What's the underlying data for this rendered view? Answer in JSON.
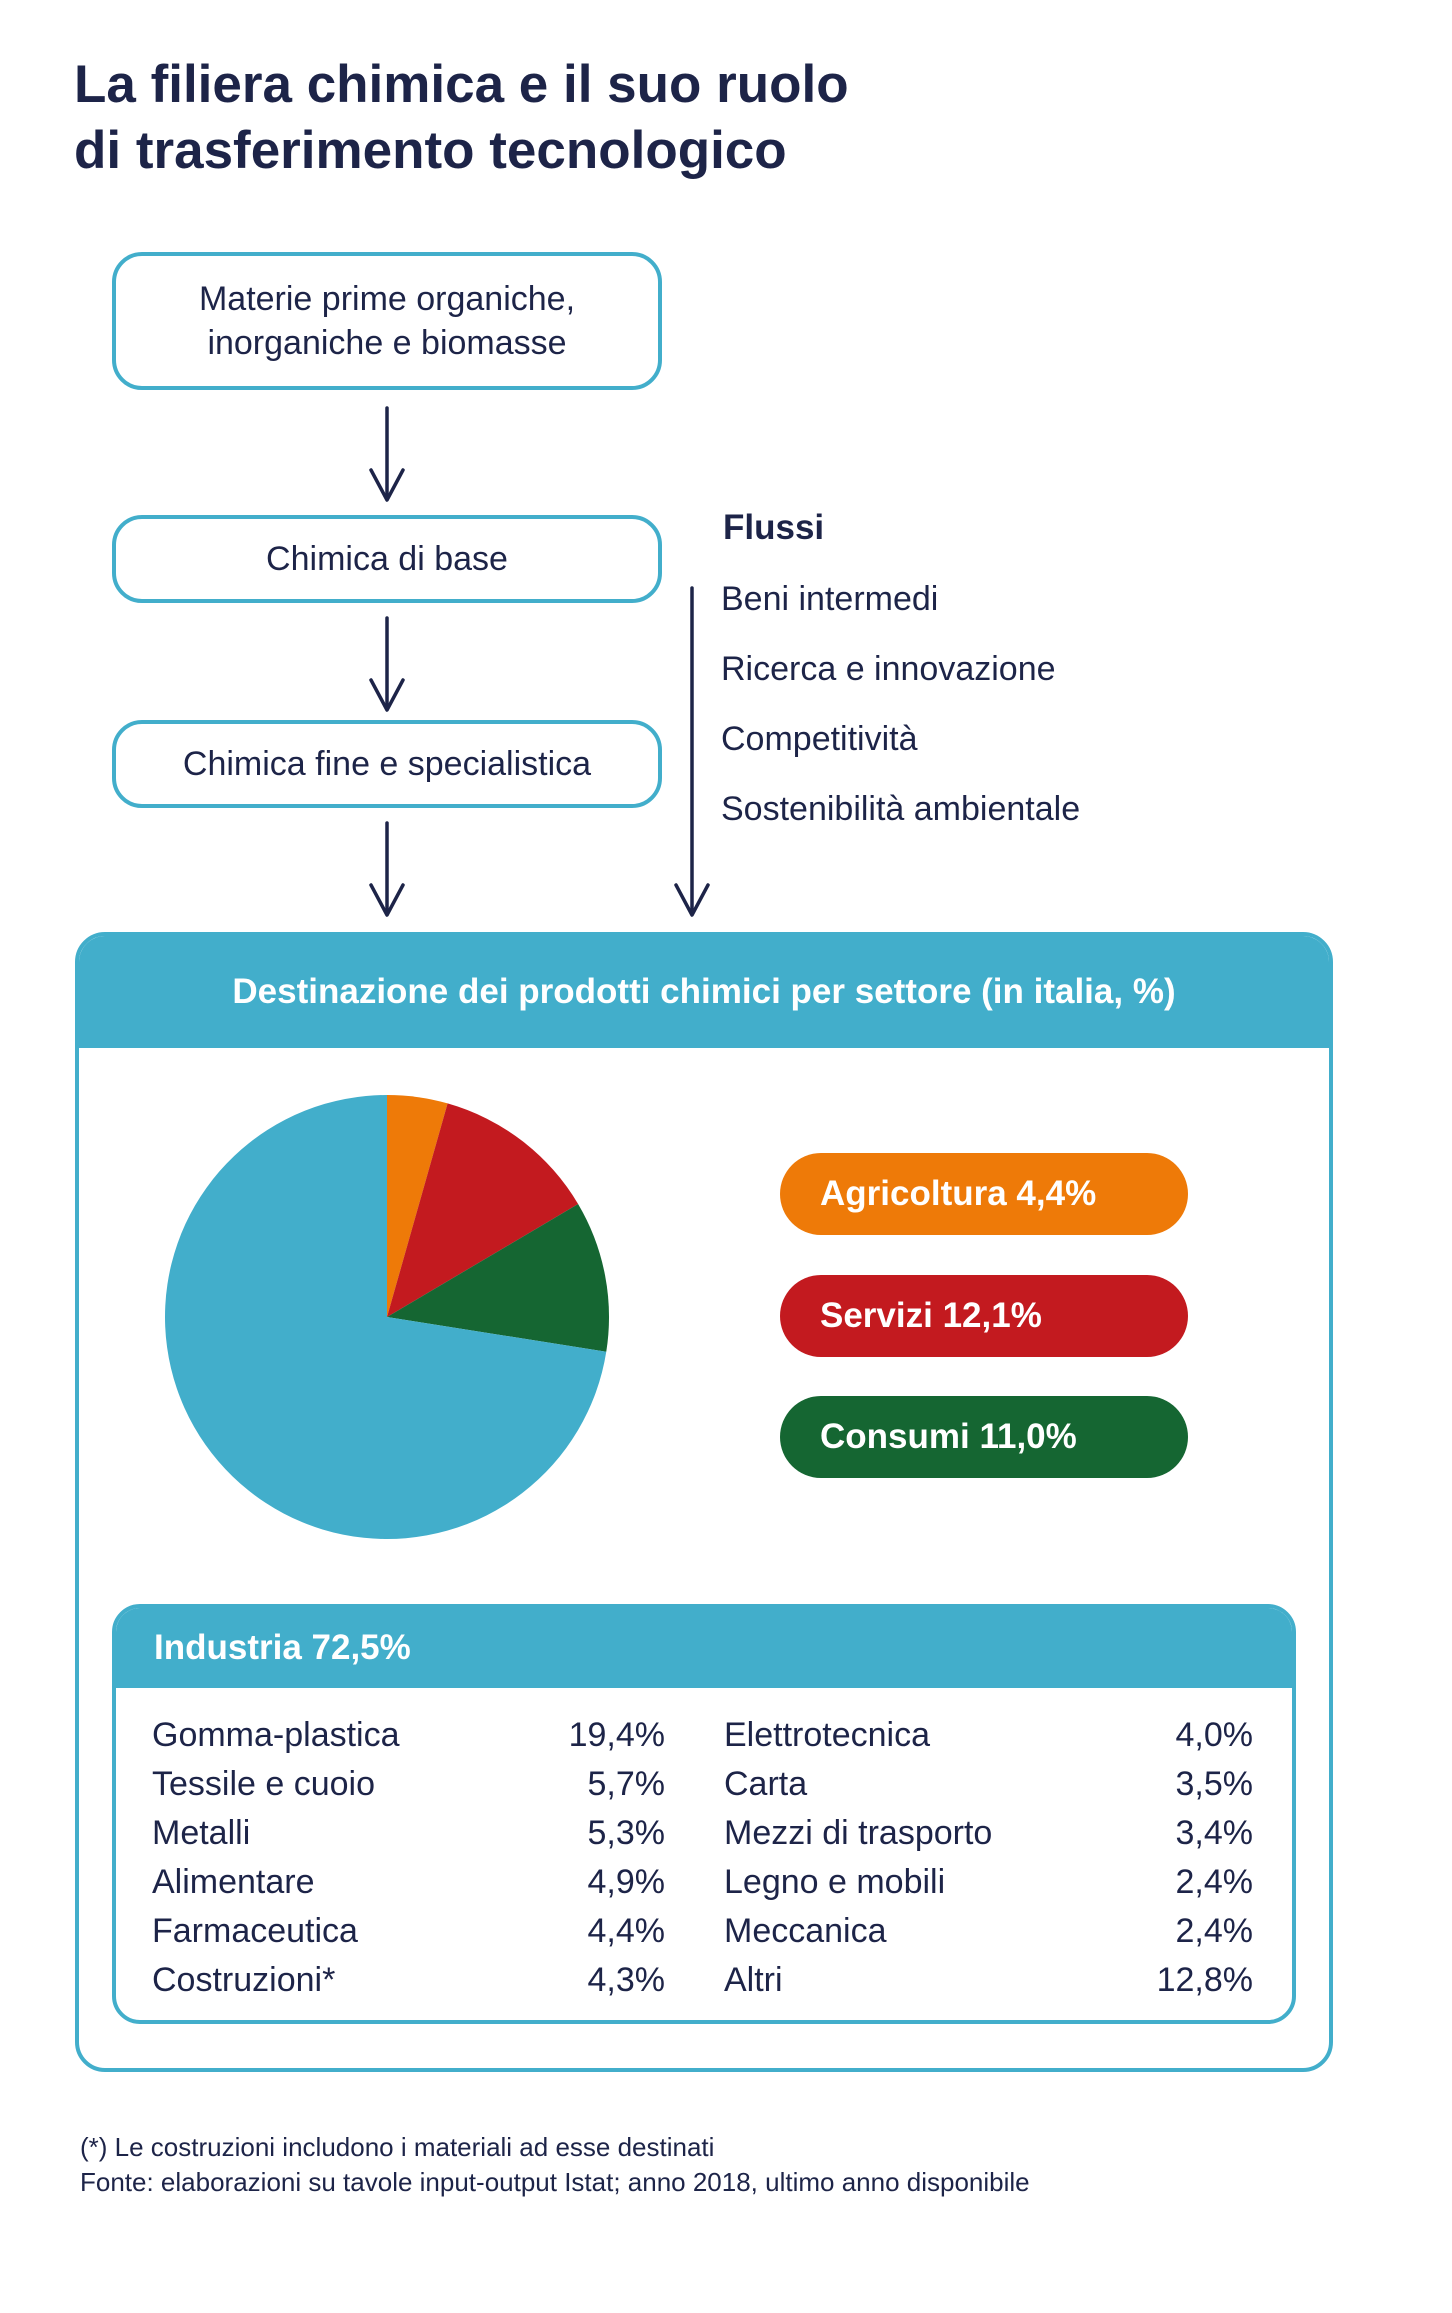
{
  "title": {
    "line1": "La filiera chimica e il suo ruolo",
    "line2": "di trasferimento tecnologico"
  },
  "flow": {
    "materie_line1": "Materie prime organiche,",
    "materie_line2": "inorganiche e biomasse",
    "base": "Chimica di base",
    "fine": "Chimica fine e specialistica"
  },
  "flussi": {
    "title": "Flussi",
    "items": [
      "Beni intermedi",
      "Ricerca e innovazione",
      "Competitività",
      "Sostenibilità ambientale"
    ]
  },
  "panel": {
    "title": "Destinazione dei prodotti chimici per settore (in italia, %)"
  },
  "chart_data": {
    "type": "pie",
    "title": "Destinazione dei prodotti chimici per settore (in italia, %)",
    "slices": [
      {
        "label": "Agricoltura",
        "value": 4.4,
        "color": "#ee7a08",
        "display": "Agricoltura 4,4%"
      },
      {
        "label": "Servizi",
        "value": 12.1,
        "color": "#c31a1f",
        "display": "Servizi 12,1%"
      },
      {
        "label": "Consumi",
        "value": 11.0,
        "color": "#156632",
        "display": "Consumi 11,0%"
      },
      {
        "label": "Industria",
        "value": 72.5,
        "color": "#42aecb",
        "display": "Industria 72,5%"
      }
    ]
  },
  "industria": {
    "title": "Industria 72,5%",
    "left": [
      {
        "name": "Gomma-plastica",
        "value": "19,4%"
      },
      {
        "name": "Tessile e cuoio",
        "value": "5,7%"
      },
      {
        "name": "Metalli",
        "value": "5,3%"
      },
      {
        "name": "Alimentare",
        "value": "4,9%"
      },
      {
        "name": "Farmaceutica",
        "value": "4,4%"
      },
      {
        "name": "Costruzioni*",
        "value": "4,3%"
      }
    ],
    "right": [
      {
        "name": "Elettrotecnica",
        "value": "4,0%"
      },
      {
        "name": "Carta",
        "value": "3,5%"
      },
      {
        "name": "Mezzi di trasporto",
        "value": "3,4%"
      },
      {
        "name": "Legno e mobili",
        "value": "2,4%"
      },
      {
        "name": "Meccanica",
        "value": "2,4%"
      },
      {
        "name": "Altri",
        "value": "12,8%"
      }
    ]
  },
  "footnotes": {
    "note": "(*) Le costruzioni includono i materiali ad esse destinati",
    "source": "Fonte: elaborazioni su tavole input-output Istat; anno 2018, ultimo anno disponibile"
  },
  "colors": {
    "accent": "#42aecb",
    "text": "#1d2448"
  }
}
